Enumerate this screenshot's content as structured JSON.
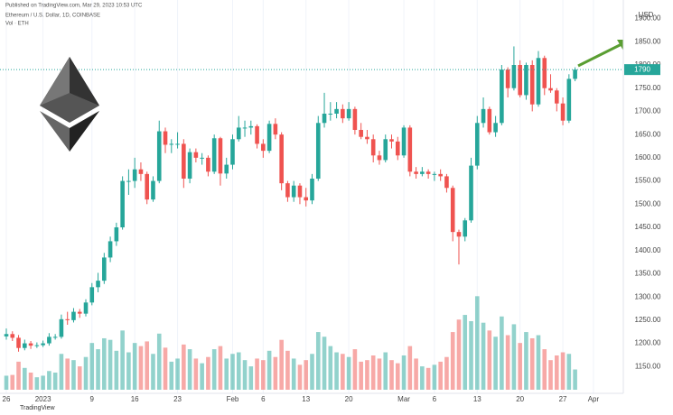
{
  "chart_data": {
    "type": "candlestick",
    "title": "Published on TradingView.com, Mar 29, 2023 10:53 UTC",
    "subtitle": "Ethereum / U.S. Dollar, 1D, COINBASE",
    "volume_title": "Vol · ETH",
    "currency": "USD",
    "brand": "TradingView",
    "up_color": "#26a69a",
    "down_color": "#ef5350",
    "grid": true,
    "categories": [
      "26",
      null,
      null,
      null,
      null,
      null,
      "2023",
      null,
      null,
      null,
      null,
      null,
      null,
      null,
      "9",
      null,
      null,
      null,
      null,
      null,
      null,
      "16",
      null,
      null,
      null,
      null,
      null,
      null,
      "23",
      null,
      null,
      null,
      null,
      null,
      null,
      null,
      null,
      "Feb",
      null,
      null,
      null,
      null,
      "6",
      null,
      null,
      null,
      null,
      null,
      null,
      "13",
      null,
      null,
      null,
      null,
      null,
      null,
      "20",
      null,
      null,
      null,
      null,
      null,
      null,
      null,
      null,
      "Mar",
      null,
      null,
      null,
      null,
      "6",
      null,
      null,
      null,
      null,
      null,
      null,
      "13",
      null,
      null,
      null,
      null,
      null,
      null,
      "20",
      null,
      null,
      null,
      null,
      null,
      null,
      "27",
      null,
      null,
      null,
      null,
      "Apr"
    ],
    "open": [
      1215,
      1220,
      1212,
      1190,
      1200,
      1195,
      1196,
      1200,
      1214,
      1214,
      1252,
      1250,
      1268,
      1264,
      1288,
      1321,
      1335,
      1385,
      1420,
      1450,
      1550,
      1550,
      1575,
      1565,
      1510,
      1550,
      1657,
      1628,
      1630,
      1630,
      1555,
      1612,
      1600,
      1600,
      1570,
      1642,
      1566,
      1585,
      1640,
      1665,
      1665,
      1668,
      1630,
      1615,
      1673,
      1650,
      1545,
      1515,
      1540,
      1515,
      1508,
      1555,
      1675,
      1695,
      1695,
      1705,
      1685,
      1705,
      1660,
      1645,
      1640,
      1605,
      1595,
      1640,
      1635,
      1605,
      1665,
      1570,
      1565,
      1570,
      1565,
      1565,
      1560,
      1535,
      1440,
      1430,
      1465,
      1583,
      1675,
      1705,
      1655,
      1675,
      1790,
      1750,
      1800,
      1735,
      1800,
      1715,
      1815,
      1750,
      1745,
      1717,
      1680,
      1770,
      null,
      null,
      null
    ],
    "high": [
      1232,
      1226,
      1218,
      1208,
      1205,
      1202,
      1206,
      1222,
      1220,
      1262,
      1268,
      1276,
      1274,
      1295,
      1330,
      1352,
      1395,
      1430,
      1460,
      1560,
      1575,
      1600,
      1590,
      1570,
      1560,
      1680,
      1665,
      1640,
      1655,
      1640,
      1620,
      1620,
      1610,
      1605,
      1650,
      1645,
      1600,
      1650,
      1690,
      1680,
      1680,
      1672,
      1640,
      1680,
      1685,
      1655,
      1550,
      1550,
      1545,
      1535,
      1565,
      1690,
      1740,
      1720,
      1720,
      1715,
      1720,
      1710,
      1675,
      1660,
      1650,
      1615,
      1650,
      1650,
      1645,
      1670,
      1670,
      1580,
      1580,
      1575,
      1570,
      1575,
      1565,
      1540,
      1445,
      1470,
      1600,
      1690,
      1730,
      1710,
      1690,
      1800,
      1795,
      1840,
      1810,
      1805,
      1810,
      1830,
      1820,
      1780,
      1750,
      1730,
      1780,
      1795,
      null,
      null,
      null
    ],
    "low": [
      1208,
      1205,
      1182,
      1185,
      1188,
      1190,
      1192,
      1195,
      1208,
      1210,
      1240,
      1245,
      1255,
      1258,
      1282,
      1310,
      1328,
      1375,
      1410,
      1445,
      1520,
      1535,
      1550,
      1500,
      1505,
      1545,
      1610,
      1610,
      1620,
      1535,
      1545,
      1590,
      1585,
      1560,
      1565,
      1540,
      1555,
      1575,
      1635,
      1645,
      1650,
      1620,
      1600,
      1610,
      1640,
      1530,
      1505,
      1505,
      1500,
      1495,
      1500,
      1550,
      1665,
      1680,
      1685,
      1675,
      1680,
      1650,
      1640,
      1630,
      1590,
      1585,
      1590,
      1620,
      1595,
      1600,
      1560,
      1555,
      1560,
      1555,
      1550,
      1550,
      1525,
      1420,
      1370,
      1420,
      1460,
      1575,
      1665,
      1650,
      1645,
      1670,
      1730,
      1745,
      1730,
      1725,
      1700,
      1710,
      1735,
      1740,
      1700,
      1670,
      1675,
      1765,
      null,
      null,
      null
    ],
    "close": [
      1220,
      1212,
      1190,
      1200,
      1195,
      1196,
      1200,
      1214,
      1214,
      1252,
      1250,
      1268,
      1264,
      1288,
      1321,
      1335,
      1385,
      1420,
      1450,
      1550,
      1550,
      1575,
      1565,
      1510,
      1550,
      1657,
      1628,
      1630,
      1630,
      1555,
      1612,
      1600,
      1600,
      1570,
      1642,
      1566,
      1585,
      1640,
      1665,
      1665,
      1668,
      1630,
      1615,
      1673,
      1650,
      1545,
      1515,
      1540,
      1515,
      1508,
      1555,
      1675,
      1695,
      1695,
      1705,
      1685,
      1705,
      1660,
      1645,
      1640,
      1605,
      1595,
      1640,
      1635,
      1605,
      1665,
      1570,
      1565,
      1570,
      1565,
      1565,
      1560,
      1535,
      1440,
      1430,
      1465,
      1583,
      1675,
      1705,
      1655,
      1675,
      1790,
      1750,
      1800,
      1735,
      1800,
      1715,
      1815,
      1750,
      1745,
      1717,
      1680,
      1770,
      1790,
      null,
      null,
      null
    ],
    "volume": [
      90,
      95,
      180,
      140,
      110,
      80,
      90,
      120,
      110,
      230,
      200,
      190,
      150,
      210,
      300,
      260,
      330,
      320,
      250,
      380,
      240,
      300,
      280,
      310,
      230,
      360,
      270,
      180,
      200,
      290,
      260,
      200,
      170,
      210,
      260,
      280,
      200,
      230,
      240,
      190,
      150,
      200,
      190,
      250,
      210,
      320,
      250,
      200,
      160,
      190,
      230,
      370,
      340,
      280,
      240,
      230,
      210,
      260,
      180,
      190,
      220,
      200,
      240,
      190,
      170,
      220,
      280,
      200,
      150,
      140,
      160,
      180,
      210,
      370,
      450,
      480,
      440,
      600,
      430,
      380,
      340,
      470,
      350,
      420,
      300,
      370,
      330,
      350,
      260,
      190,
      220,
      240,
      230,
      130,
      null,
      null,
      null
    ],
    "ylim": [
      1100,
      1940
    ],
    "yticks": [
      {
        "value": 1150,
        "label": "1150.00"
      },
      {
        "value": 1200,
        "label": "1200.00"
      },
      {
        "value": 1250,
        "label": "1250.00"
      },
      {
        "value": 1300,
        "label": "1300.00"
      },
      {
        "value": 1350,
        "label": "1350.00"
      },
      {
        "value": 1400,
        "label": "1400.00"
      },
      {
        "value": 1450,
        "label": "1450.00"
      },
      {
        "value": 1500,
        "label": "1500.00"
      },
      {
        "value": 1550,
        "label": "1550.00"
      },
      {
        "value": 1600,
        "label": "1600.00"
      },
      {
        "value": 1650,
        "label": "1650.00"
      },
      {
        "value": 1700,
        "label": "1700.00"
      },
      {
        "value": 1750,
        "label": "1750.00"
      },
      {
        "value": 1800,
        "label": "1800.00"
      },
      {
        "value": 1850,
        "label": "1850.00"
      },
      {
        "value": 1900,
        "label": "1900.00"
      }
    ],
    "y2lim": [
      0,
      2500
    ]
  }
}
